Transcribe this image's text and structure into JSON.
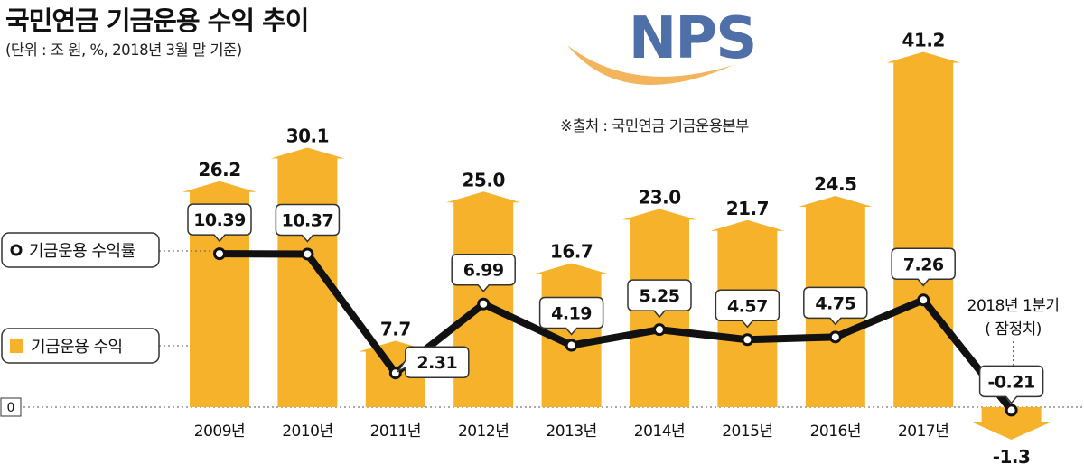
{
  "header": {
    "title": "국민연금 기금운용 수익 추이",
    "subtitle": "(단위 : 조 원, %, 2018년 3월 말 기준)",
    "source": "※출처 : 국민연금 기금운용본부"
  },
  "logo": {
    "text": "NPS"
  },
  "colors": {
    "bar": "#F5B22A",
    "line": "#111111",
    "zero_line": "#555555",
    "logo_blue": "#4F6FA8",
    "logo_swoosh": "#F2B45C"
  },
  "legend": {
    "line_label": "기금운용 수익률",
    "bar_label": "기금운용 수익"
  },
  "chart_data": {
    "type": "bar",
    "title": "국민연금 기금운용 수익 추이",
    "units": "조 원, %",
    "categories": [
      "2009년",
      "2010년",
      "2011년",
      "2012년",
      "2013년",
      "2014년",
      "2015년",
      "2016년",
      "2017년",
      "2018년 1분기 ( 잠정치)"
    ],
    "category_label_parts": [
      [
        "2009년"
      ],
      [
        "2010년"
      ],
      [
        "2011년"
      ],
      [
        "2012년"
      ],
      [
        "2013년"
      ],
      [
        "2014년"
      ],
      [
        "2015년"
      ],
      [
        "2016년"
      ],
      [
        "2017년"
      ],
      [
        "2018년 1분기",
        "( 잠정치)"
      ]
    ],
    "series": [
      {
        "name": "기금운용 수익",
        "type": "bar",
        "values": [
          26.2,
          30.1,
          7.7,
          25.0,
          16.7,
          23.0,
          21.7,
          24.5,
          41.2,
          -1.3
        ],
        "labels": [
          "26.2",
          "30.1",
          "7.7",
          "25.0",
          "16.7",
          "23.0",
          "21.7",
          "24.5",
          "41.2",
          "-1.3"
        ]
      },
      {
        "name": "기금운용 수익률",
        "type": "line",
        "values": [
          10.39,
          10.37,
          2.31,
          6.99,
          4.19,
          5.25,
          4.57,
          4.75,
          7.26,
          -0.21
        ],
        "labels": [
          "10.39",
          "10.37",
          "2.31",
          "6.99",
          "4.19",
          "5.25",
          "4.57",
          "4.75",
          "7.26",
          "-0.21"
        ]
      }
    ],
    "zero_label": "0"
  }
}
